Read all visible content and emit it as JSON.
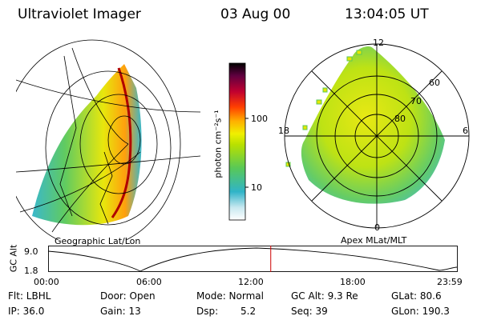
{
  "header": {
    "instrument": "Ultraviolet Imager",
    "date": "03 Aug 00",
    "time": "13:04:05 UT"
  },
  "geo_panel": {
    "caption": "Geographic Lat/Lon"
  },
  "colorbar": {
    "unit_label": "photon cm⁻²s⁻¹",
    "tick_labels": [
      "100",
      "10"
    ]
  },
  "polar_panel": {
    "caption": "Apex MLat/MLT",
    "mlt_labels": {
      "top": "12",
      "left": "18",
      "right": "6",
      "bottom": "0"
    },
    "lat_labels": [
      "60",
      "70",
      "80"
    ]
  },
  "orbit_plot": {
    "ylabel": "GC Alt",
    "ytick_labels": [
      "9.0",
      "1.8"
    ],
    "xtick_labels": [
      "00:00",
      "06:00",
      "12:00",
      "18:00",
      "23:59"
    ],
    "current_time_hours": 13.07,
    "alt_range": [
      1.8,
      9.0
    ]
  },
  "status": {
    "flt": "Flt: LBHL",
    "ip": "IP: 36.0",
    "door": "Door: Open",
    "gain": "Gain: 13",
    "mode": "Mode: Normal",
    "dsp_label": "Dsp:",
    "dsp_value": "5.2",
    "gc_alt": "GC Alt: 9.3 Re",
    "seq": "Seq: 39",
    "glat": "GLat: 80.6",
    "glon": "GLon: 190.3"
  },
  "colors": {
    "aurora_peak": "#b00000",
    "aurora_high": "#ff9a00",
    "aurora_mid": "#e6e600",
    "aurora_low": "#58c858",
    "aurora_faint": "#30b4c8",
    "marker": "#cc0000"
  }
}
